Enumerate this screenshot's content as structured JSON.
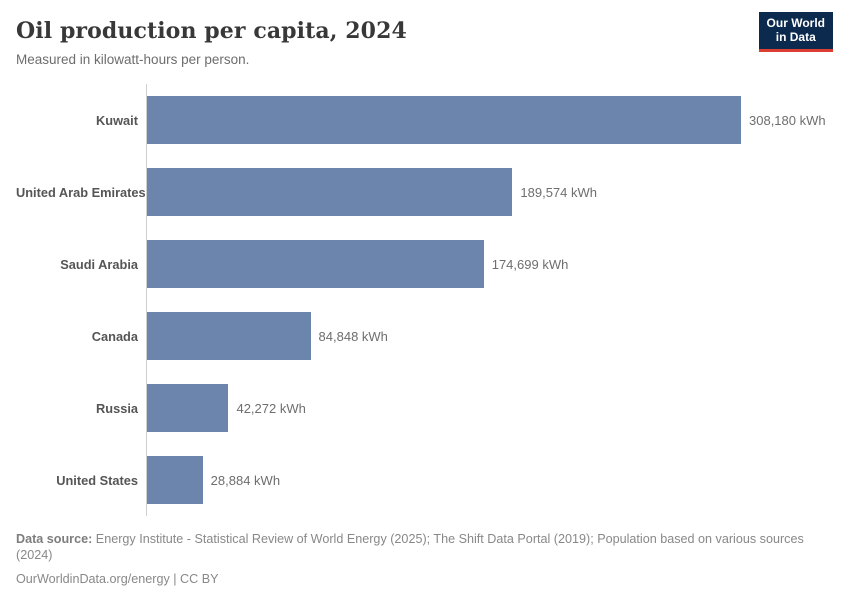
{
  "header": {
    "title": "Oil production per capita, 2024",
    "subtitle": "Measured in kilowatt-hours per person.",
    "logo": {
      "line1": "Our World",
      "line2": "in Data"
    }
  },
  "chart_data": {
    "type": "bar",
    "orientation": "horizontal",
    "title": "Oil production per capita, 2024",
    "subtitle": "Measured in kilowatt-hours per person.",
    "unit": "kWh",
    "categories": [
      "Kuwait",
      "United Arab Emirates",
      "Saudi Arabia",
      "Canada",
      "Russia",
      "United States"
    ],
    "values": [
      308180,
      189574,
      174699,
      84848,
      42272,
      28884
    ],
    "value_labels": [
      "308,180 kWh",
      "189,574 kWh",
      "174,699 kWh",
      "84,848 kWh",
      "42,272 kWh",
      "28,884 kWh"
    ],
    "xlim": [
      0,
      308180
    ],
    "grid": false,
    "legend": "none",
    "bar_color": "#6c85ac"
  },
  "colors": {
    "bar": "#6c85ac",
    "logo_navy": "#0b2a4e",
    "logo_red": "#dc3e32",
    "axis_line": "#cfcfcf"
  },
  "footer": {
    "source_label": "Data source:",
    "source_text": " Energy Institute - Statistical Review of World Energy (2025); The Shift Data Portal (2019); Population based on various sources (2024)",
    "link_text": "OurWorldinData.org/energy",
    "separator": " | ",
    "license_text": "CC BY"
  }
}
